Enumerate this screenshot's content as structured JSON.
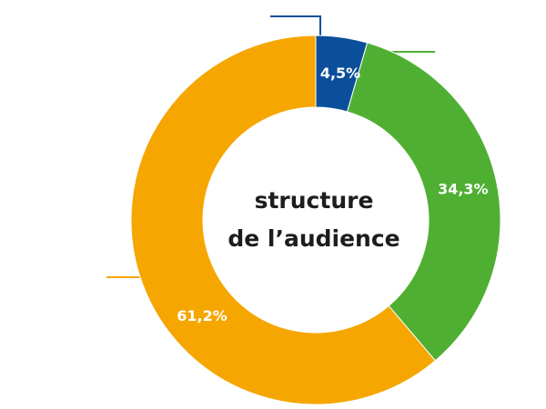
{
  "chart_data": {
    "type": "pie",
    "variant": "donut",
    "title_lines": [
      "structure",
      "de l’audience"
    ],
    "slices": [
      {
        "value": 4.5,
        "label": "4,5%",
        "color": "#0b4f9b"
      },
      {
        "value": 34.3,
        "label": "34,3%",
        "color": "#4faf32"
      },
      {
        "value": 61.2,
        "label": "61,2%",
        "color": "#f5a600"
      }
    ],
    "start_angle": "top",
    "direction": "clockwise",
    "legend": "none"
  }
}
